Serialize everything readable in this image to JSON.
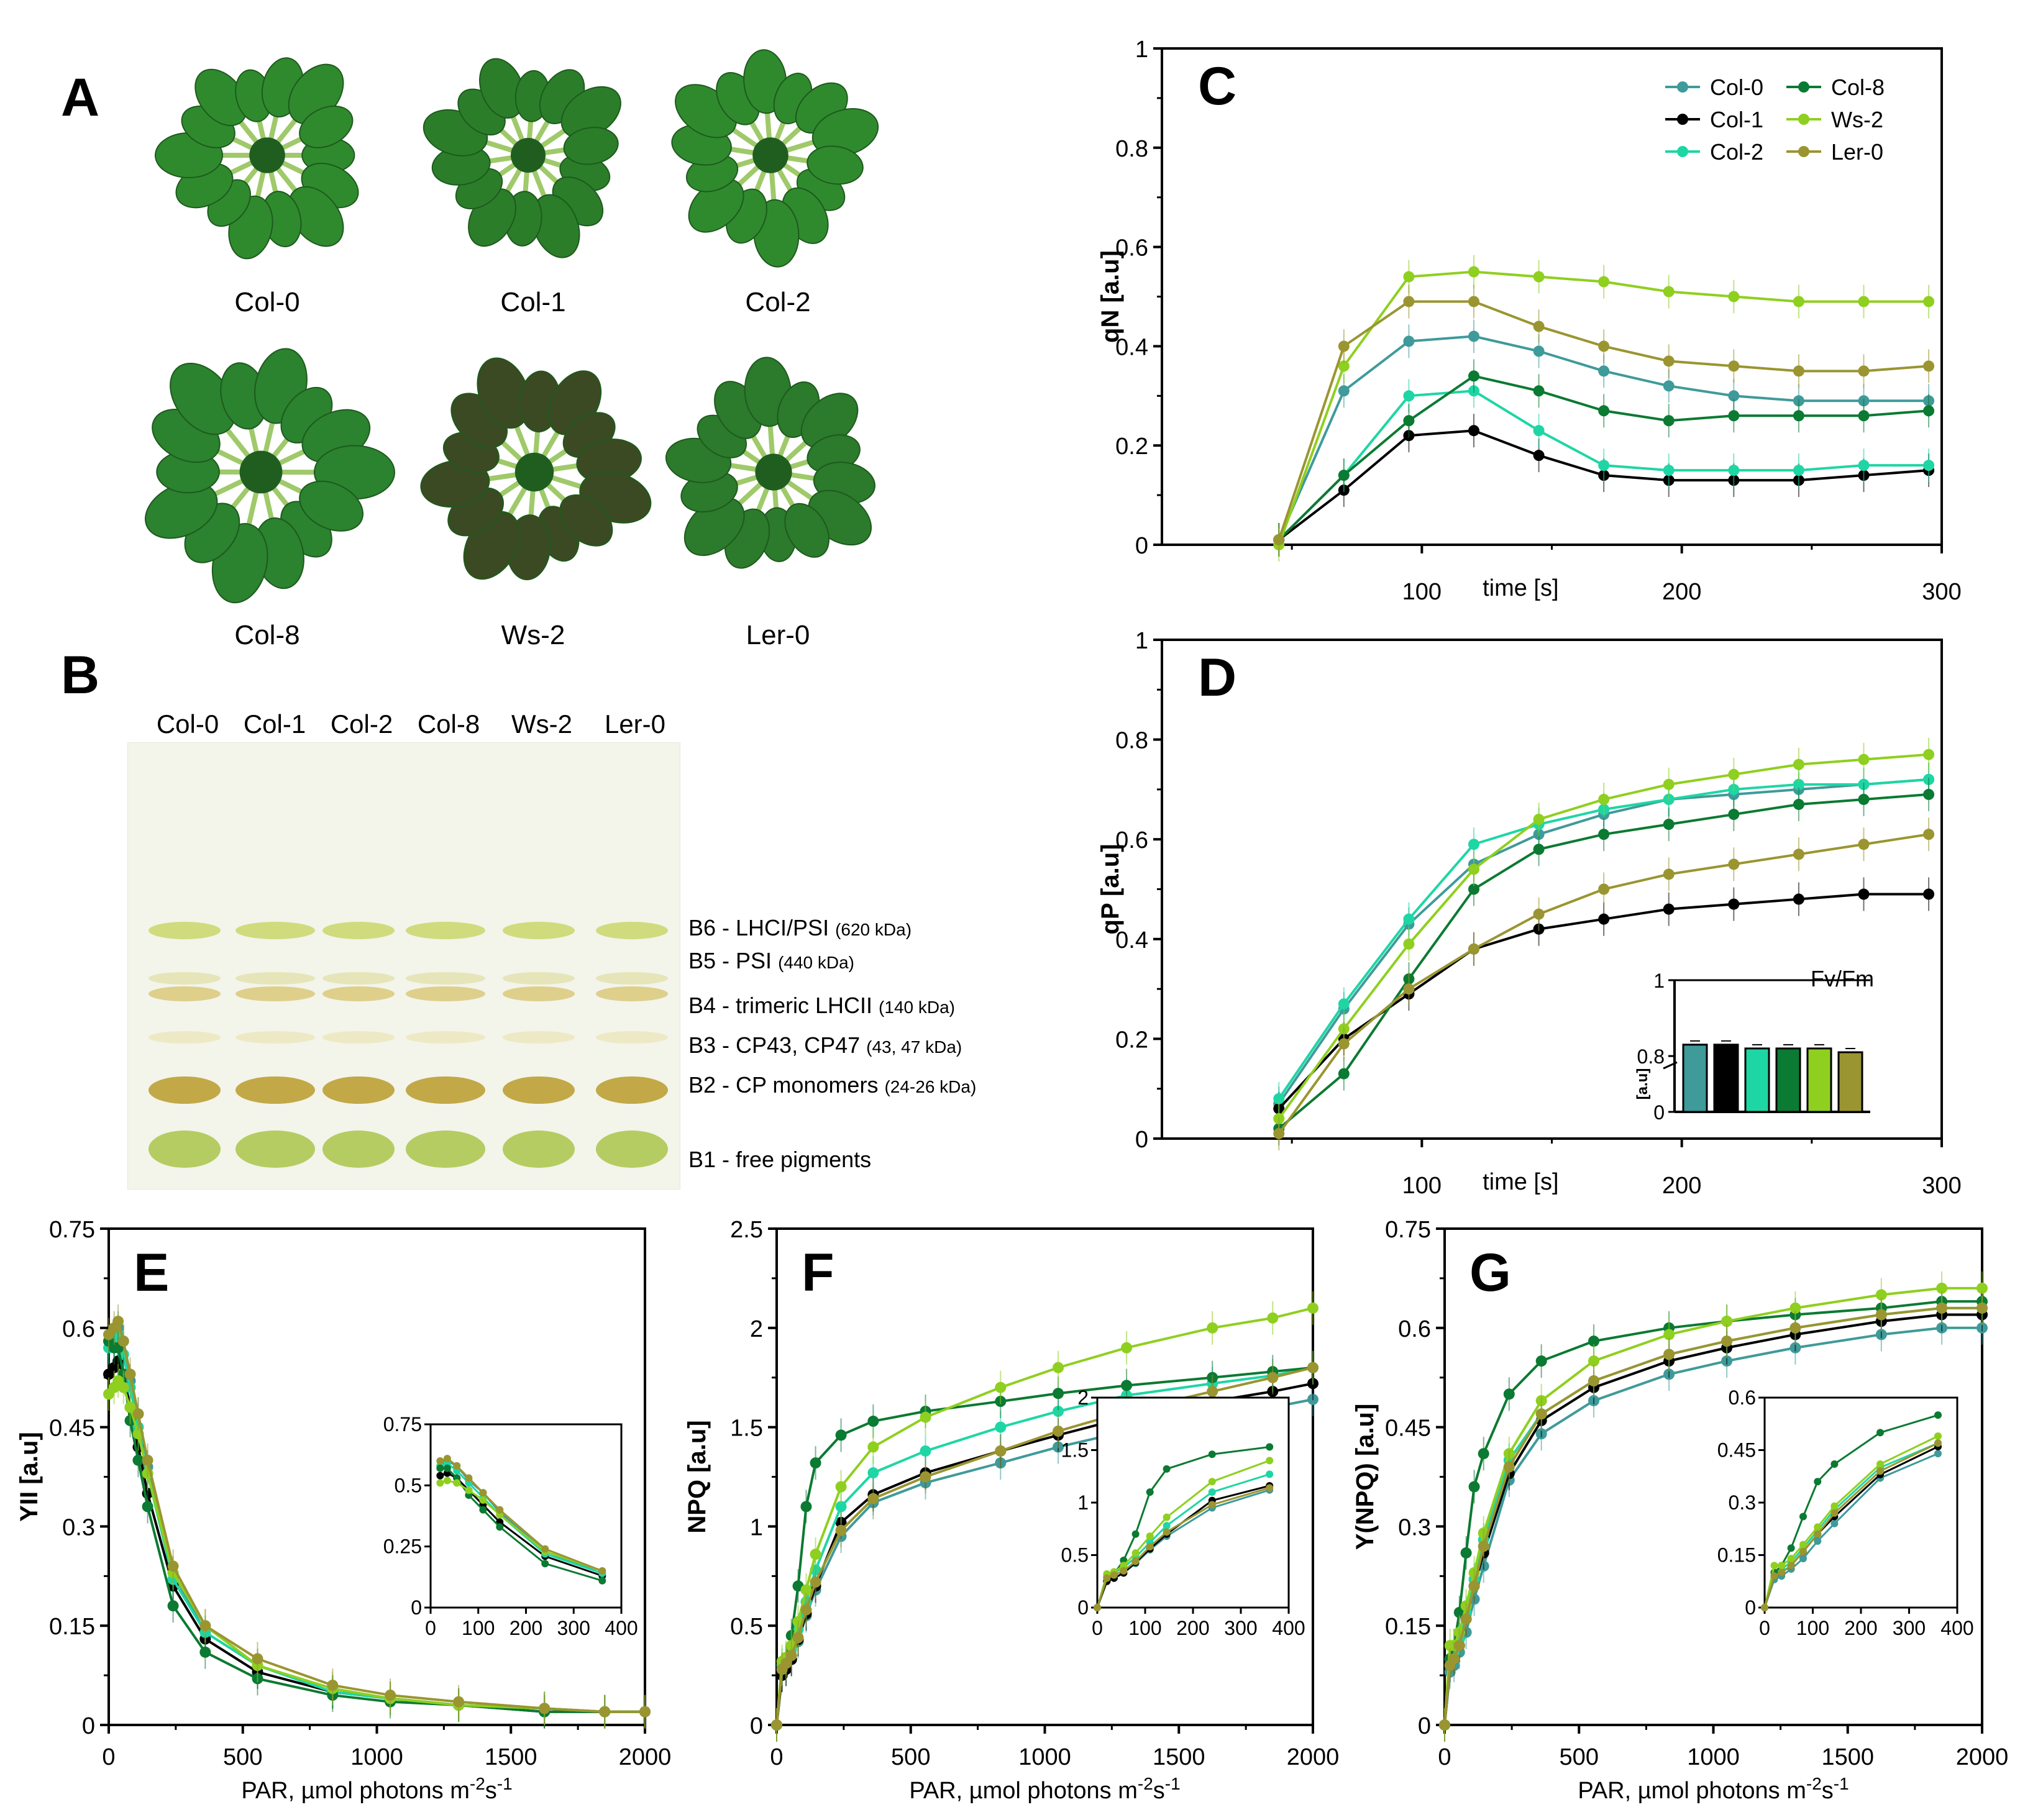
{
  "panels": {
    "A": {
      "letter": "A",
      "plants": [
        "Col-0",
        "Col-1",
        "Col-2",
        "Col-8",
        "Ws-2",
        "Ler-0"
      ]
    },
    "B": {
      "letter": "B",
      "lanes": [
        "Col-0",
        "Col-1",
        "Col-2",
        "Col-8",
        "Ws-2",
        "Ler-0"
      ],
      "bands": [
        {
          "label": "B6 - LHCI/PSI ",
          "mass": "(620 kDa)"
        },
        {
          "label": "B5 - PSI ",
          "mass": "(440 kDa)"
        },
        {
          "label": "B4 - trimeric LHCII ",
          "mass": "(140 kDa)"
        },
        {
          "label": "B3 - CP43, CP47 ",
          "mass": "(43, 47 kDa)"
        },
        {
          "label": "B2 - CP monomers ",
          "mass": "(24-26 kDa)"
        },
        {
          "label": "B1 - free pigments",
          "mass": ""
        }
      ]
    }
  },
  "colors": {
    "Col-0": "#3f9a9a",
    "Col-1": "#000000",
    "Col-2": "#1ed6a4",
    "Col-8": "#0b7a32",
    "Ws-2": "#8fcf1f",
    "Ler-0": "#9a9530"
  },
  "chart_data": [
    {
      "id": "C",
      "letter": "C",
      "type": "line",
      "xlabel": "time [s]",
      "ylabel": "qN [a.u]",
      "xlim": [
        0,
        300
      ],
      "ylim": [
        0,
        1
      ],
      "xticks": [
        100,
        200,
        300
      ],
      "yticks": [
        0,
        0.2,
        0.4,
        0.6,
        0.8,
        1
      ],
      "ytick_labels": [
        "0",
        "0.2",
        "0.4",
        "0.6",
        "0.8",
        "1"
      ],
      "x": [
        45,
        70,
        95,
        120,
        145,
        170,
        195,
        220,
        245,
        270,
        295
      ],
      "series": [
        {
          "name": "Col-0",
          "values": [
            0.01,
            0.31,
            0.41,
            0.42,
            0.39,
            0.35,
            0.32,
            0.3,
            0.29,
            0.29,
            0.29
          ]
        },
        {
          "name": "Col-1",
          "values": [
            0.01,
            0.11,
            0.22,
            0.23,
            0.18,
            0.14,
            0.13,
            0.13,
            0.13,
            0.14,
            0.15
          ]
        },
        {
          "name": "Col-2",
          "values": [
            0.01,
            0.14,
            0.3,
            0.31,
            0.23,
            0.16,
            0.15,
            0.15,
            0.15,
            0.16,
            0.16
          ]
        },
        {
          "name": "Col-8",
          "values": [
            0.01,
            0.14,
            0.25,
            0.34,
            0.31,
            0.27,
            0.25,
            0.26,
            0.26,
            0.26,
            0.27
          ]
        },
        {
          "name": "Ws-2",
          "values": [
            0.0,
            0.36,
            0.54,
            0.55,
            0.54,
            0.53,
            0.51,
            0.5,
            0.49,
            0.49,
            0.49
          ]
        },
        {
          "name": "Ler-0",
          "values": [
            0.01,
            0.4,
            0.49,
            0.49,
            0.44,
            0.4,
            0.37,
            0.36,
            0.35,
            0.35,
            0.36
          ]
        }
      ]
    },
    {
      "id": "D",
      "letter": "D",
      "type": "line",
      "xlabel": "time [s]",
      "ylabel": "qP [a.u]",
      "xlim": [
        0,
        300
      ],
      "ylim": [
        0,
        1
      ],
      "xticks": [
        100,
        200,
        300
      ],
      "yticks": [
        0,
        0.2,
        0.4,
        0.6,
        0.8,
        1
      ],
      "ytick_labels": [
        "0",
        "0.2",
        "0.4",
        "0.6",
        "0.8",
        "1"
      ],
      "x": [
        45,
        70,
        95,
        120,
        145,
        170,
        195,
        220,
        245,
        270,
        295
      ],
      "series": [
        {
          "name": "Col-0",
          "values": [
            0.07,
            0.26,
            0.43,
            0.55,
            0.61,
            0.65,
            0.68,
            0.69,
            0.7,
            0.71,
            0.72
          ]
        },
        {
          "name": "Col-1",
          "values": [
            0.06,
            0.2,
            0.29,
            0.38,
            0.42,
            0.44,
            0.46,
            0.47,
            0.48,
            0.49,
            0.49
          ]
        },
        {
          "name": "Col-2",
          "values": [
            0.08,
            0.27,
            0.44,
            0.59,
            0.63,
            0.66,
            0.68,
            0.7,
            0.71,
            0.71,
            0.72
          ]
        },
        {
          "name": "Col-8",
          "values": [
            0.02,
            0.13,
            0.32,
            0.5,
            0.58,
            0.61,
            0.63,
            0.65,
            0.67,
            0.68,
            0.69
          ]
        },
        {
          "name": "Ws-2",
          "values": [
            0.04,
            0.22,
            0.39,
            0.54,
            0.64,
            0.68,
            0.71,
            0.73,
            0.75,
            0.76,
            0.77
          ]
        },
        {
          "name": "Ler-0",
          "values": [
            0.01,
            0.19,
            0.3,
            0.38,
            0.45,
            0.5,
            0.53,
            0.55,
            0.57,
            0.59,
            0.61
          ]
        }
      ],
      "inset": {
        "type": "bar",
        "title": "Fv/Fm",
        "ylabel": "[a.u]",
        "ytick_labels": [
          "0",
          "0.8",
          "1"
        ],
        "categories": [
          "Col-0",
          "Col-1",
          "Col-2",
          "Col-8",
          "Ws-2",
          "Ler-0"
        ],
        "values": [
          0.83,
          0.83,
          0.82,
          0.82,
          0.82,
          0.81
        ]
      }
    },
    {
      "id": "E",
      "letter": "E",
      "type": "line",
      "xlabel": "PAR, µmol photons m",
      "xlabel_sup": "-2",
      "xlabel_mid": "s",
      "xlabel_sup2": "-1",
      "ylabel": "YII [a.u]",
      "xlim": [
        0,
        2000
      ],
      "ylim": [
        0,
        0.75
      ],
      "xticks": [
        0,
        500,
        1000,
        1500,
        2000
      ],
      "yticks": [
        0,
        0.15,
        0.3,
        0.45,
        0.6,
        0.75
      ],
      "ytick_labels": [
        "0",
        "0.15",
        "0.3",
        "0.45",
        "0.6",
        "0.75"
      ],
      "x": [
        0,
        20,
        35,
        55,
        80,
        110,
        145,
        240,
        360,
        555,
        835,
        1050,
        1305,
        1625,
        1850,
        2000
      ],
      "series": [
        {
          "name": "Col-0",
          "values": [
            0.58,
            0.58,
            0.6,
            0.58,
            0.52,
            0.47,
            0.39,
            0.23,
            0.14,
            0.09,
            0.05,
            0.04,
            0.03,
            0.025,
            0.02,
            0.02
          ]
        },
        {
          "name": "Col-1",
          "values": [
            0.53,
            0.54,
            0.55,
            0.53,
            0.48,
            0.42,
            0.35,
            0.21,
            0.13,
            0.08,
            0.05,
            0.04,
            0.03,
            0.02,
            0.02,
            0.02
          ]
        },
        {
          "name": "Col-2",
          "values": [
            0.57,
            0.58,
            0.59,
            0.56,
            0.51,
            0.45,
            0.38,
            0.22,
            0.14,
            0.09,
            0.05,
            0.04,
            0.03,
            0.025,
            0.02,
            0.02
          ]
        },
        {
          "name": "Col-8",
          "values": [
            0.58,
            0.57,
            0.57,
            0.53,
            0.46,
            0.4,
            0.33,
            0.18,
            0.11,
            0.07,
            0.045,
            0.035,
            0.03,
            0.02,
            0.02,
            0.02
          ]
        },
        {
          "name": "Ws-2",
          "values": [
            0.5,
            0.51,
            0.52,
            0.51,
            0.48,
            0.44,
            0.38,
            0.23,
            0.15,
            0.09,
            0.055,
            0.04,
            0.03,
            0.025,
            0.02,
            0.02
          ]
        },
        {
          "name": "Ler-0",
          "values": [
            0.59,
            0.6,
            0.61,
            0.58,
            0.53,
            0.47,
            0.4,
            0.24,
            0.15,
            0.1,
            0.06,
            0.045,
            0.035,
            0.025,
            0.02,
            0.02
          ]
        }
      ],
      "inset": {
        "xlim": [
          0,
          400
        ],
        "ylim": [
          0,
          0.75
        ],
        "xticks": [
          0,
          100,
          200,
          300,
          400
        ],
        "yticks": [
          0,
          0.25,
          0.5,
          0.75
        ],
        "ytick_labels": [
          "0",
          "0.25",
          "0.5",
          "0.75"
        ],
        "x": [
          20,
          35,
          55,
          80,
          110,
          145,
          240,
          360
        ]
      }
    },
    {
      "id": "F",
      "letter": "F",
      "type": "line",
      "xlabel": "PAR, µmol photons m",
      "xlabel_sup": "-2",
      "xlabel_mid": "s",
      "xlabel_sup2": "-1",
      "ylabel": "NPQ [a.u]",
      "xlim": [
        0,
        2000
      ],
      "ylim": [
        0,
        2.5
      ],
      "xticks": [
        0,
        500,
        1000,
        1500,
        2000
      ],
      "yticks": [
        0,
        0.5,
        1,
        1.5,
        2,
        2.5
      ],
      "ytick_labels": [
        "0",
        "0.5",
        "1",
        "1.5",
        "2",
        "2.5"
      ],
      "x": [
        0,
        20,
        35,
        55,
        80,
        110,
        145,
        240,
        360,
        555,
        835,
        1050,
        1305,
        1625,
        1850,
        2000
      ],
      "series": [
        {
          "name": "Col-0",
          "values": [
            0,
            0.25,
            0.28,
            0.33,
            0.42,
            0.55,
            0.68,
            0.95,
            1.12,
            1.22,
            1.32,
            1.4,
            1.48,
            1.55,
            1.6,
            1.64
          ]
        },
        {
          "name": "Col-1",
          "values": [
            0,
            0.25,
            0.28,
            0.33,
            0.43,
            0.56,
            0.7,
            1.02,
            1.16,
            1.27,
            1.38,
            1.46,
            1.55,
            1.63,
            1.68,
            1.72
          ]
        },
        {
          "name": "Col-2",
          "values": [
            0,
            0.3,
            0.33,
            0.38,
            0.48,
            0.62,
            0.78,
            1.1,
            1.27,
            1.38,
            1.5,
            1.58,
            1.66,
            1.72,
            1.76,
            1.8
          ]
        },
        {
          "name": "Col-8",
          "values": [
            0,
            0.28,
            0.32,
            0.45,
            0.7,
            1.1,
            1.32,
            1.46,
            1.53,
            1.58,
            1.63,
            1.67,
            1.71,
            1.75,
            1.78,
            1.8
          ]
        },
        {
          "name": "Ws-2",
          "values": [
            0,
            0.32,
            0.34,
            0.4,
            0.52,
            0.68,
            0.86,
            1.2,
            1.4,
            1.55,
            1.7,
            1.8,
            1.9,
            2.0,
            2.05,
            2.1
          ]
        },
        {
          "name": "Ler-0",
          "values": [
            0,
            0.28,
            0.31,
            0.35,
            0.44,
            0.58,
            0.72,
            0.98,
            1.14,
            1.25,
            1.38,
            1.48,
            1.58,
            1.68,
            1.75,
            1.8
          ]
        }
      ],
      "inset": {
        "xlim": [
          0,
          400
        ],
        "ylim": [
          0,
          2
        ],
        "xticks": [
          0,
          100,
          200,
          300,
          400
        ],
        "yticks": [
          0,
          0.5,
          1,
          1.5,
          2
        ],
        "ytick_labels": [
          "0",
          "0.5",
          "1",
          "1.5",
          "2"
        ],
        "x": [
          0,
          20,
          35,
          55,
          80,
          110,
          145,
          240,
          360
        ]
      }
    },
    {
      "id": "G",
      "letter": "G",
      "type": "line",
      "xlabel": "PAR, µmol photons m",
      "xlabel_sup": "-2",
      "xlabel_mid": "s",
      "xlabel_sup2": "-1",
      "ylabel": "Y(NPQ) [a.u]",
      "xlim": [
        0,
        2000
      ],
      "ylim": [
        0,
        0.75
      ],
      "xticks": [
        0,
        500,
        1000,
        1500,
        2000
      ],
      "yticks": [
        0,
        0.15,
        0.3,
        0.45,
        0.6,
        0.75
      ],
      "ytick_labels": [
        "0",
        "0.15",
        "0.3",
        "0.45",
        "0.6",
        "0.75"
      ],
      "x": [
        0,
        20,
        35,
        55,
        80,
        110,
        145,
        240,
        360,
        555,
        835,
        1050,
        1305,
        1625,
        1850,
        2000
      ],
      "series": [
        {
          "name": "Col-0",
          "values": [
            0,
            0.08,
            0.09,
            0.11,
            0.14,
            0.19,
            0.24,
            0.37,
            0.44,
            0.49,
            0.53,
            0.55,
            0.57,
            0.59,
            0.6,
            0.6
          ]
        },
        {
          "name": "Col-1",
          "values": [
            0,
            0.09,
            0.1,
            0.12,
            0.16,
            0.21,
            0.26,
            0.38,
            0.46,
            0.51,
            0.55,
            0.57,
            0.59,
            0.61,
            0.62,
            0.62
          ]
        },
        {
          "name": "Col-2",
          "values": [
            0,
            0.1,
            0.11,
            0.13,
            0.17,
            0.22,
            0.28,
            0.4,
            0.47,
            0.52,
            0.56,
            0.58,
            0.6,
            0.62,
            0.63,
            0.63
          ]
        },
        {
          "name": "Col-8",
          "values": [
            0,
            0.1,
            0.12,
            0.17,
            0.26,
            0.36,
            0.41,
            0.5,
            0.55,
            0.58,
            0.6,
            0.61,
            0.62,
            0.63,
            0.64,
            0.64
          ]
        },
        {
          "name": "Ws-2",
          "values": [
            0,
            0.12,
            0.12,
            0.14,
            0.18,
            0.23,
            0.29,
            0.41,
            0.49,
            0.55,
            0.59,
            0.61,
            0.63,
            0.65,
            0.66,
            0.66
          ]
        },
        {
          "name": "Ler-0",
          "values": [
            0,
            0.09,
            0.1,
            0.12,
            0.16,
            0.21,
            0.27,
            0.39,
            0.47,
            0.52,
            0.56,
            0.58,
            0.6,
            0.62,
            0.63,
            0.63
          ]
        }
      ],
      "inset": {
        "xlim": [
          0,
          400
        ],
        "ylim": [
          0,
          0.6
        ],
        "xticks": [
          0,
          100,
          200,
          300,
          400
        ],
        "yticks": [
          0,
          0.15,
          0.3,
          0.45,
          0.6
        ],
        "ytick_labels": [
          "0",
          "0.15",
          "0.3",
          "0.45",
          "0.6"
        ],
        "x": [
          0,
          20,
          35,
          55,
          80,
          110,
          145,
          240,
          360
        ]
      }
    }
  ]
}
